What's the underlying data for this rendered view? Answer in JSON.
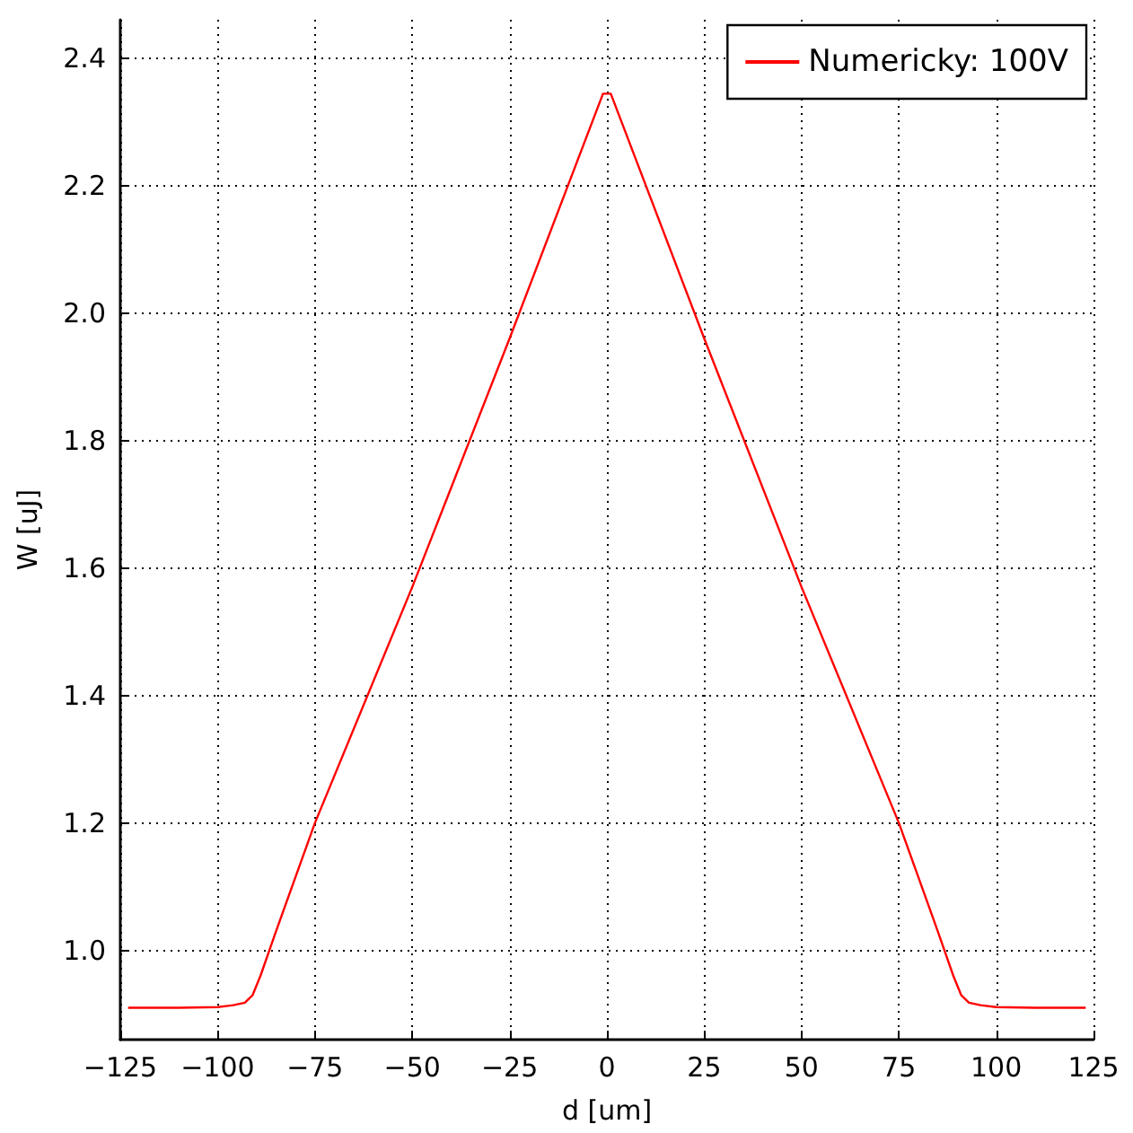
{
  "chart_data": {
    "type": "line",
    "xlabel": "d [um]",
    "ylabel": "W [uJ]",
    "xlim": [
      -125,
      125
    ],
    "ylim": [
      0.86,
      2.46
    ],
    "xticks": [
      -125,
      -100,
      -75,
      -50,
      -25,
      0,
      25,
      50,
      75,
      100,
      125
    ],
    "yticks": [
      {
        "value": 1,
        "label": "1.0"
      },
      1.2,
      1.4,
      1.6,
      1.8,
      {
        "value": 2,
        "label": "2.0"
      },
      2.2,
      2.4
    ],
    "grid": true,
    "legend": "top right",
    "marker": "none",
    "line_style": "solid",
    "series": [
      {
        "name": "Numericky: 100V",
        "color": "#ff0000",
        "x": [
          -123,
          -110,
          -100,
          -96,
          -93,
          -91,
          -89,
          -85,
          -75,
          -50,
          -25,
          -1,
          1,
          25,
          50,
          75,
          85,
          89,
          91,
          93,
          96,
          100,
          110,
          123
        ],
        "values": [
          0.91,
          0.91,
          0.911,
          0.914,
          0.918,
          0.93,
          0.96,
          1.03,
          1.2,
          1.57,
          1.96,
          2.344,
          2.344,
          1.96,
          1.57,
          1.2,
          1.03,
          0.96,
          0.93,
          0.918,
          0.914,
          0.911,
          0.91,
          0.91
        ]
      }
    ]
  }
}
